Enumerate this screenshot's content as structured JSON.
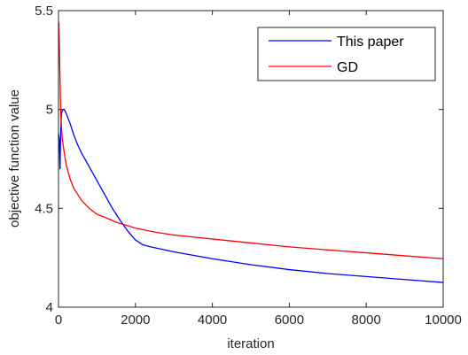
{
  "chart_data": {
    "type": "line",
    "title": "",
    "xlabel": "iteration",
    "ylabel": "objective function value",
    "xlim": [
      0,
      10000
    ],
    "ylim": [
      4,
      5.5
    ],
    "xticks": [
      0,
      2000,
      4000,
      6000,
      8000,
      10000
    ],
    "xtick_labels": [
      "0",
      "2000",
      "4000",
      "6000",
      "8000",
      "10000"
    ],
    "yticks": [
      4,
      4.5,
      5,
      5.5
    ],
    "ytick_labels": [
      "4",
      "4.5",
      "5",
      "5.5"
    ],
    "grid": false,
    "legend_position": "top-right",
    "series": [
      {
        "name": "This paper",
        "color": "#0000ff",
        "x": [
          0,
          20,
          40,
          50,
          60,
          70,
          80,
          100,
          120,
          150,
          200,
          300,
          400,
          500,
          600,
          800,
          1000,
          1200,
          1400,
          1600,
          1800,
          2000,
          2200,
          2400,
          3000,
          4000,
          5000,
          6000,
          7000,
          8000,
          9000,
          10000
        ],
        "y": [
          4.88,
          4.85,
          4.7,
          4.82,
          4.9,
          4.95,
          4.98,
          4.995,
          5.0,
          5.0,
          4.98,
          4.93,
          4.87,
          4.82,
          4.78,
          4.71,
          4.64,
          4.57,
          4.5,
          4.44,
          4.385,
          4.34,
          4.315,
          4.305,
          4.28,
          4.245,
          4.215,
          4.19,
          4.17,
          4.155,
          4.14,
          4.125
        ]
      },
      {
        "name": "GD",
        "color": "#ff0000",
        "x": [
          0,
          10,
          20,
          30,
          40,
          50,
          60,
          80,
          100,
          150,
          200,
          300,
          400,
          500,
          600,
          800,
          1000,
          1200,
          1500,
          2000,
          2500,
          3000,
          4000,
          5000,
          6000,
          7000,
          8000,
          9000,
          10000
        ],
        "y": [
          5.44,
          5.44,
          5.35,
          5.25,
          5.15,
          5.05,
          4.98,
          4.9,
          4.85,
          4.78,
          4.72,
          4.65,
          4.6,
          4.57,
          4.54,
          4.5,
          4.47,
          4.455,
          4.43,
          4.4,
          4.38,
          4.365,
          4.345,
          4.325,
          4.305,
          4.29,
          4.275,
          4.26,
          4.245
        ]
      }
    ]
  }
}
